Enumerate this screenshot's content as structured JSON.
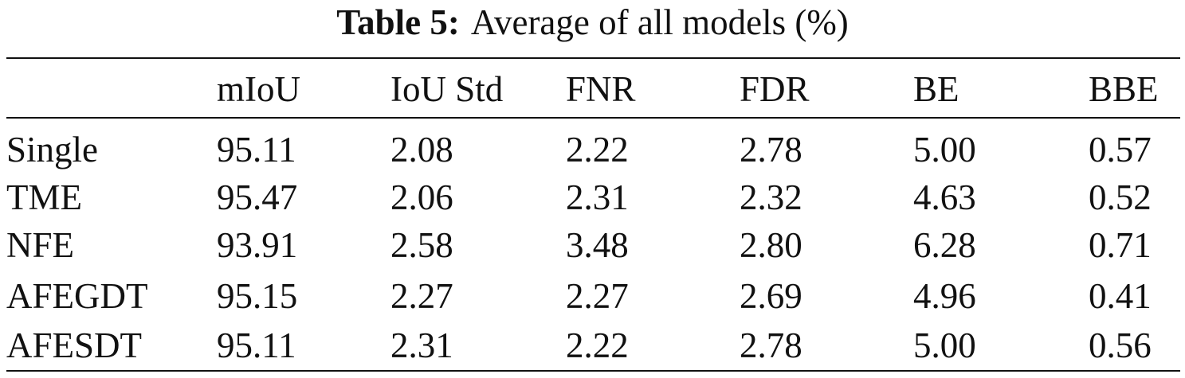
{
  "caption": {
    "label": "Table 5:",
    "text": "Average of all models (%)"
  },
  "table": {
    "columns": [
      "",
      "mIoU",
      "IoU Std",
      "FNR",
      "FDR",
      "BE",
      "BBE"
    ],
    "rows": [
      {
        "name": "Single",
        "values": [
          "95.11",
          "2.08",
          "2.22",
          "2.78",
          "5.00",
          "0.57"
        ]
      },
      {
        "name": "TME",
        "values": [
          "95.47",
          "2.06",
          "2.31",
          "2.32",
          "4.63",
          "0.52"
        ]
      },
      {
        "name": "NFE",
        "values": [
          "93.91",
          "2.58",
          "3.48",
          "2.80",
          "6.28",
          "0.71"
        ]
      },
      {
        "name": "AFEGDT",
        "values": [
          "95.15",
          "2.27",
          "2.27",
          "2.69",
          "4.96",
          "0.41"
        ]
      },
      {
        "name": "AFESDT",
        "values": [
          "95.11",
          "2.31",
          "2.22",
          "2.78",
          "5.00",
          "0.56"
        ]
      }
    ]
  }
}
